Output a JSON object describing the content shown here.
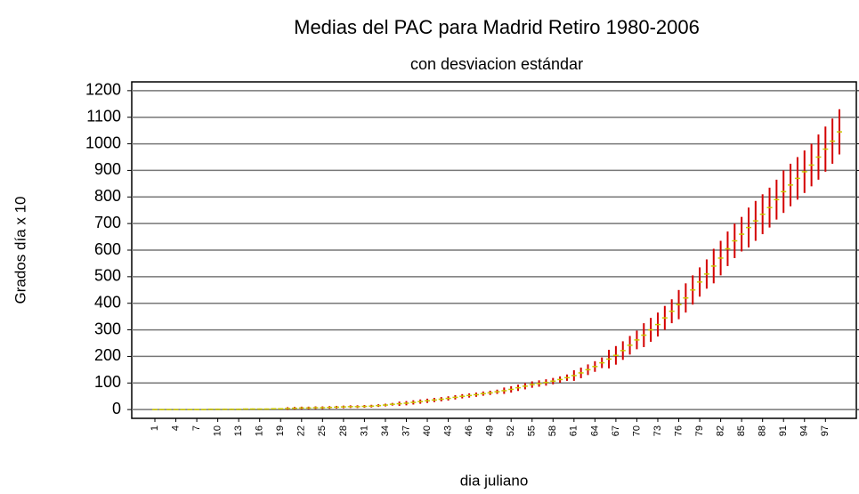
{
  "chart_data": {
    "type": "errorbar",
    "title": "Medias del PAC para Madrid Retiro 1980-2006",
    "subtitle": "con desviacion estándar",
    "y_label": "Grados día x 10",
    "x_label": "dia juliano",
    "categories": [
      1,
      null,
      null,
      4,
      null,
      null,
      7,
      null,
      null,
      10,
      null,
      null,
      13,
      null,
      null,
      16,
      null,
      null,
      19,
      null,
      null,
      22,
      null,
      null,
      25,
      null,
      null,
      28,
      null,
      null,
      31,
      null,
      null,
      34,
      null,
      null,
      37,
      null,
      null,
      40,
      null,
      null,
      43,
      null,
      null,
      46,
      null,
      null,
      49,
      null,
      null,
      52,
      null,
      null,
      55,
      null,
      null,
      58,
      null,
      null,
      61,
      null,
      null,
      64,
      null,
      null,
      67,
      null,
      null,
      70,
      null,
      null,
      73,
      null,
      null,
      76,
      null,
      null,
      79,
      null,
      null,
      82,
      null,
      null,
      85,
      null,
      null,
      88,
      null,
      null,
      91,
      null,
      null,
      94,
      null,
      null,
      97,
      null,
      null
    ],
    "values": [
      0,
      0,
      0,
      0,
      0,
      0,
      0,
      0,
      1,
      1,
      1,
      1,
      1,
      2,
      2,
      2,
      2,
      3,
      3,
      4,
      5,
      6,
      6,
      7,
      7,
      8,
      9,
      10,
      11,
      11,
      12,
      13,
      15,
      17,
      20,
      22,
      24,
      27,
      30,
      33,
      36,
      39,
      42,
      46,
      50,
      53,
      56,
      60,
      63,
      67,
      71,
      76,
      82,
      88,
      94,
      98,
      102,
      107,
      113,
      120,
      128,
      138,
      150,
      162,
      176,
      190,
      204,
      222,
      242,
      262,
      280,
      300,
      320,
      345,
      370,
      395,
      420,
      450,
      480,
      510,
      540,
      570,
      605,
      635,
      660,
      685,
      710,
      735,
      760,
      790,
      820,
      845,
      870,
      895,
      920,
      950,
      980,
      1010,
      1045
    ],
    "errors": [
      2,
      2,
      2,
      2,
      2,
      2,
      2,
      2,
      2,
      2,
      2,
      2,
      2,
      2,
      2,
      2,
      2,
      2,
      2,
      5,
      5,
      5,
      5,
      5,
      5,
      5,
      5,
      5,
      5,
      5,
      5,
      5,
      5,
      5,
      5,
      8,
      8,
      8,
      8,
      8,
      8,
      8,
      8,
      8,
      8,
      8,
      8,
      8,
      8,
      8,
      12,
      12,
      12,
      12,
      12,
      12,
      12,
      12,
      12,
      12,
      20,
      20,
      20,
      20,
      20,
      35,
      35,
      35,
      35,
      35,
      45,
      45,
      45,
      45,
      45,
      55,
      55,
      55,
      55,
      55,
      65,
      65,
      65,
      65,
      65,
      75,
      75,
      75,
      75,
      75,
      80,
      80,
      80,
      80,
      80,
      85,
      85,
      85,
      85
    ],
    "error_color": "#d40000",
    "mean_color": "#c8c800",
    "ylim": [
      -33,
      1233
    ],
    "yticks": [
      0,
      100,
      200,
      300,
      400,
      500,
      600,
      700,
      800,
      900,
      1000,
      1100,
      1200
    ],
    "grid": true
  }
}
